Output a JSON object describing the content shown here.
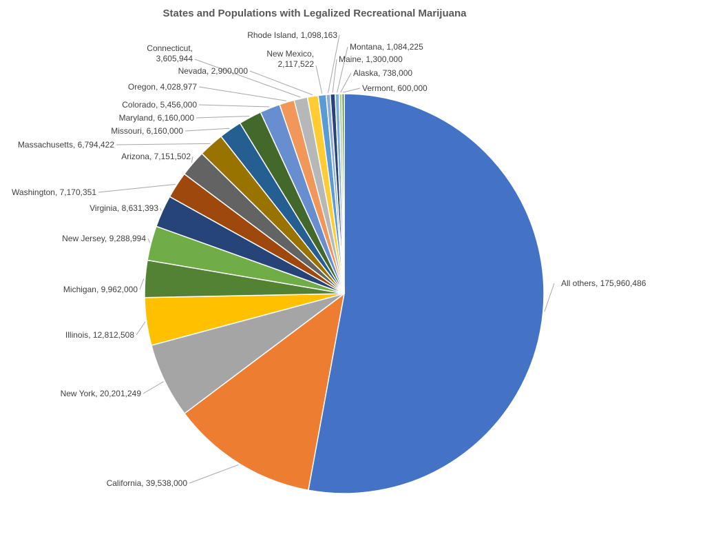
{
  "chart_data": {
    "type": "pie",
    "title": "States and Populations with Legalized Recreational Marijuana",
    "slices": [
      {
        "name": "All others",
        "value": 175960486,
        "label": "All others, 175,960,486",
        "color": "#4472C4"
      },
      {
        "name": "California",
        "value": 39538000,
        "label": "California, 39,538,000",
        "color": "#ED7D31"
      },
      {
        "name": "New York",
        "value": 20201249,
        "label": "New York, 20,201,249",
        "color": "#A5A5A5"
      },
      {
        "name": "Illinois",
        "value": 12812508,
        "label": "Illinois, 12,812,508",
        "color": "#FFC000"
      },
      {
        "name": "Michigan",
        "value": 9962000,
        "label": "Michigan, 9,962,000",
        "color": "#548235"
      },
      {
        "name": "New Jersey",
        "value": 9288994,
        "label": "New Jersey, 9,288,994",
        "color": "#70AD47"
      },
      {
        "name": "Virginia",
        "value": 8631393,
        "label": "Virginia, 8,631,393",
        "color": "#264478"
      },
      {
        "name": "Washington",
        "value": 7170351,
        "label": "Washington, 7,170,351",
        "color": "#9E480E"
      },
      {
        "name": "Arizona",
        "value": 7151502,
        "label": "Arizona, 7,151,502",
        "color": "#636363"
      },
      {
        "name": "Massachusetts",
        "value": 6794422,
        "label": "Massachusetts, 6,794,422",
        "color": "#997300"
      },
      {
        "name": "Missouri",
        "value": 6160000,
        "label": "Missouri, 6,160,000",
        "color": "#255E91"
      },
      {
        "name": "Maryland",
        "value": 6160000,
        "label": "Maryland, 6,160,000",
        "color": "#43682B"
      },
      {
        "name": "Colorado",
        "value": 5456000,
        "label": "Colorado, 5,456,000",
        "color": "#698ED0"
      },
      {
        "name": "Oregon",
        "value": 4028977,
        "label": "Oregon, 4,028,977",
        "color": "#F1975A"
      },
      {
        "name": "Connecticut",
        "value": 3605944,
        "label": "Connecticut,\n3,605,944",
        "color": "#B7B7B7"
      },
      {
        "name": "Nevada",
        "value": 2900000,
        "label": "Nevada, 2,900,000",
        "color": "#FFCD33"
      },
      {
        "name": "New Mexico",
        "value": 2117522,
        "label": "New Mexico,\n2,117,522",
        "color": "#5B9BD5"
      },
      {
        "name": "Rhode Island",
        "value": 1098163,
        "label": "Rhode Island, 1,098,163",
        "color": "#8FAADC"
      },
      {
        "name": "Maine",
        "value": 1300000,
        "label": "Maine, 1,300,000",
        "color": "#264478"
      },
      {
        "name": "Montana",
        "value": 1084225,
        "label": "Montana, 1,084,225",
        "color": "#7CAFDD"
      },
      {
        "name": "Alaska",
        "value": 738000,
        "label": "Alaska, 738,000",
        "color": "#A9D18E"
      },
      {
        "name": "Vermont",
        "value": 600000,
        "label": "Vermont, 600,000",
        "color": "#4E8542"
      }
    ],
    "legend": "none"
  }
}
